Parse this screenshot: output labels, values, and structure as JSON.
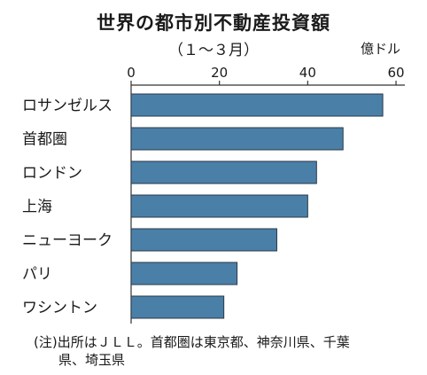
{
  "title": "世界の都市別不動産投資額",
  "subtitle": "（１～３月）",
  "unit": "億ドル",
  "note": {
    "line1": "(注)出所はＪＬＬ。首都圏は東京都、神奈川県、千葉",
    "line2": "県、埼玉県"
  },
  "chart_data": {
    "type": "bar",
    "orientation": "horizontal",
    "title": "世界の都市別不動産投資額",
    "subtitle": "（１～３月）",
    "unit": "億ドル",
    "categories": [
      "ロサンゼルス",
      "首都圏",
      "ロンドン",
      "上海",
      "ニューヨーク",
      "パリ",
      "ワシントン"
    ],
    "values": [
      57,
      48,
      42,
      40,
      33,
      24,
      21
    ],
    "xlim": [
      0,
      62
    ],
    "ticks": [
      0,
      20,
      40,
      60
    ],
    "bar_color": "#4a7fa8",
    "bar_border": "#2b3a47",
    "grid": false
  }
}
